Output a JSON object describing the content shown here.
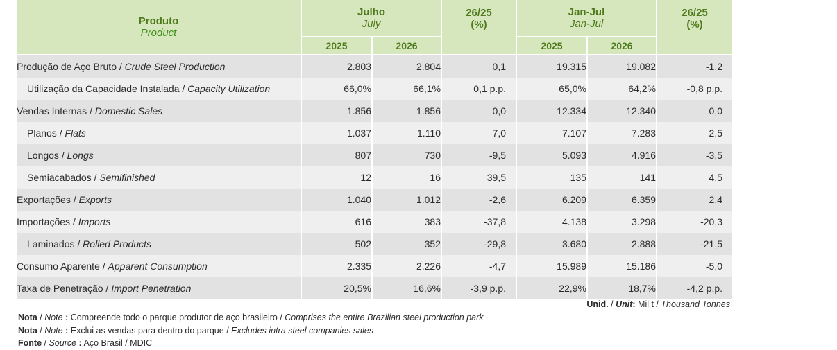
{
  "header": {
    "product_pt": "Produto",
    "product_en": "Product",
    "july_pt": "Julho",
    "july_en": "July",
    "jan_jul_pt": "Jan-Jul",
    "jan_jul_en": "Jan-Jul",
    "change_label": "26/25",
    "change_unit": "(%)",
    "year1": "2025",
    "year2": "2026"
  },
  "rows": [
    {
      "pt": "Produção de Aço Bruto",
      "en": "Crude Steel Production",
      "indent": false,
      "jul2025": "2.803",
      "jul2026": "2.804",
      "julchg": "0,1",
      "jj2025": "19.315",
      "jj2026": "19.082",
      "jjchg": "-1,2"
    },
    {
      "pt": "Utilização da Capacidade Instalada",
      "en": "Capacity Utilization",
      "indent": true,
      "jul2025": "66,0%",
      "jul2026": "66,1%",
      "julchg": "0,1 p.p.",
      "jj2025": "65,0%",
      "jj2026": "64,2%",
      "jjchg": "-0,8 p.p."
    },
    {
      "pt": "Vendas Internas",
      "en": "Domestic Sales",
      "indent": false,
      "jul2025": "1.856",
      "jul2026": "1.856",
      "julchg": "0,0",
      "jj2025": "12.334",
      "jj2026": "12.340",
      "jjchg": "0,0"
    },
    {
      "pt": "Planos",
      "en": "Flats",
      "indent": true,
      "jul2025": "1.037",
      "jul2026": "1.110",
      "julchg": "7,0",
      "jj2025": "7.107",
      "jj2026": "7.283",
      "jjchg": "2,5"
    },
    {
      "pt": "Longos",
      "en": "Longs",
      "indent": true,
      "jul2025": "807",
      "jul2026": "730",
      "julchg": "-9,5",
      "jj2025": "5.093",
      "jj2026": "4.916",
      "jjchg": "-3,5"
    },
    {
      "pt": "Semiacabados",
      "en": "Semifinished",
      "indent": true,
      "jul2025": "12",
      "jul2026": "16",
      "julchg": "39,5",
      "jj2025": "135",
      "jj2026": "141",
      "jjchg": "4,5"
    },
    {
      "pt": "Exportações",
      "en": "Exports",
      "indent": false,
      "jul2025": "1.040",
      "jul2026": "1.012",
      "julchg": "-2,6",
      "jj2025": "6.209",
      "jj2026": "6.359",
      "jjchg": "2,4"
    },
    {
      "pt": "Importações",
      "en": "Imports",
      "indent": false,
      "jul2025": "616",
      "jul2026": "383",
      "julchg": "-37,8",
      "jj2025": "4.138",
      "jj2026": "3.298",
      "jjchg": "-20,3"
    },
    {
      "pt": "Laminados",
      "en": "Rolled Products",
      "indent": true,
      "jul2025": "502",
      "jul2026": "352",
      "julchg": "-29,8",
      "jj2025": "3.680",
      "jj2026": "2.888",
      "jjchg": "-21,5"
    },
    {
      "pt": "Consumo Aparente",
      "en": "Apparent Consumption",
      "indent": false,
      "jul2025": "2.335",
      "jul2026": "2.226",
      "julchg": "-4,7",
      "jj2025": "15.989",
      "jj2026": "15.186",
      "jjchg": "-5,0"
    },
    {
      "pt": "Taxa de Penetração",
      "en": "Import Penetration",
      "indent": false,
      "jul2025": "20,5%",
      "jul2026": "16,6%",
      "julchg": "-3,9 p.p.",
      "jj2025": "22,9%",
      "jj2026": "18,7%",
      "jjchg": "-4,2 p.p."
    }
  ],
  "unit_line": {
    "label_pt": "Unid.",
    "label_en": "Unit",
    "value_pt": "Mil t",
    "value_en": "Thousand Tonnes"
  },
  "notes": [
    {
      "label_pt": "Nota",
      "label_en": "Note",
      "text_pt": "Compreende todo o parque produtor de aço brasileiro",
      "text_en": "Comprises the entire Brazilian steel production park"
    },
    {
      "label_pt": "Nota",
      "label_en": "Note",
      "text_pt": "Exclui as vendas para dentro do parque",
      "text_en": "Excludes intra steel companies sales"
    },
    {
      "label_pt": "Fonte",
      "label_en": "Source",
      "text_pt": "Aço Brasil / MDIC",
      "text_en": ""
    }
  ],
  "colors": {
    "header_bg": "#d7e7bd",
    "header_text": "#4e7a1b",
    "row_odd_bg": "#e2e2e2",
    "row_even_bg": "#efefef"
  }
}
